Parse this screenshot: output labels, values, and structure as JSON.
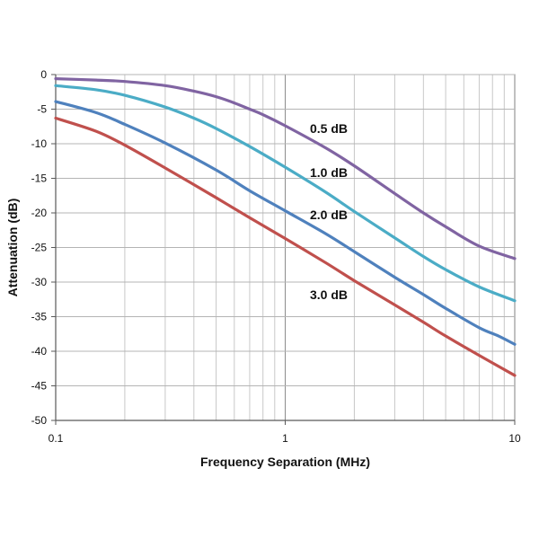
{
  "chart_data": {
    "type": "line",
    "title": "",
    "xlabel": "Frequency Separation (MHz)",
    "ylabel": "Attenuation (dB)",
    "x_scale": "log",
    "xlim": [
      0.1,
      10
    ],
    "ylim": [
      -50,
      0
    ],
    "x_ticks": [
      "0.1",
      "1",
      "10"
    ],
    "y_ticks": [
      "0",
      "-5",
      "-10",
      "-15",
      "-20",
      "-25",
      "-30",
      "-35",
      "-40",
      "-45",
      "-50"
    ],
    "grid": true,
    "legend": "none (series labeled inline)",
    "series": [
      {
        "name": "0.5 dB",
        "color": "#8064a2",
        "points": [
          [
            0.1,
            -0.6
          ],
          [
            0.15,
            -0.8
          ],
          [
            0.2,
            -1.0
          ],
          [
            0.3,
            -1.6
          ],
          [
            0.4,
            -2.4
          ],
          [
            0.5,
            -3.2
          ],
          [
            0.6,
            -4.1
          ],
          [
            0.7,
            -5.0
          ],
          [
            0.8,
            -5.8
          ],
          [
            1.0,
            -7.4
          ],
          [
            1.5,
            -10.6
          ],
          [
            2.0,
            -13.2
          ],
          [
            3.0,
            -17.2
          ],
          [
            4.0,
            -20.0
          ],
          [
            5.0,
            -22.0
          ],
          [
            7.0,
            -24.8
          ],
          [
            10,
            -26.6
          ]
        ]
      },
      {
        "name": "1.0 dB",
        "color": "#4bacc6",
        "points": [
          [
            0.1,
            -1.6
          ],
          [
            0.15,
            -2.2
          ],
          [
            0.2,
            -3.0
          ],
          [
            0.3,
            -4.7
          ],
          [
            0.4,
            -6.3
          ],
          [
            0.5,
            -7.8
          ],
          [
            0.7,
            -10.4
          ],
          [
            1.0,
            -13.4
          ],
          [
            1.5,
            -17.0
          ],
          [
            2.0,
            -19.8
          ],
          [
            3.0,
            -23.6
          ],
          [
            4.0,
            -26.3
          ],
          [
            5.0,
            -28.2
          ],
          [
            7.0,
            -30.7
          ],
          [
            10,
            -32.7
          ]
        ]
      },
      {
        "name": "2.0 dB",
        "color": "#4f81bd",
        "points": [
          [
            0.1,
            -3.9
          ],
          [
            0.15,
            -5.5
          ],
          [
            0.2,
            -7.2
          ],
          [
            0.3,
            -9.9
          ],
          [
            0.5,
            -13.8
          ],
          [
            0.7,
            -16.8
          ],
          [
            1.0,
            -19.7
          ],
          [
            1.5,
            -23.0
          ],
          [
            2.0,
            -25.6
          ],
          [
            3.0,
            -29.3
          ],
          [
            4.0,
            -31.8
          ],
          [
            5.0,
            -33.8
          ],
          [
            7.0,
            -36.6
          ],
          [
            8.5,
            -37.8
          ],
          [
            10,
            -39.0
          ]
        ]
      },
      {
        "name": "3.0 dB",
        "color": "#c0504d",
        "points": [
          [
            0.1,
            -6.3
          ],
          [
            0.15,
            -8.2
          ],
          [
            0.2,
            -10.2
          ],
          [
            0.3,
            -13.5
          ],
          [
            0.5,
            -17.8
          ],
          [
            0.7,
            -20.7
          ],
          [
            1.0,
            -23.7
          ],
          [
            1.5,
            -27.2
          ],
          [
            2.0,
            -29.8
          ],
          [
            3.0,
            -33.3
          ],
          [
            4.0,
            -35.8
          ],
          [
            5.0,
            -37.8
          ],
          [
            7.0,
            -40.6
          ],
          [
            10,
            -43.5
          ]
        ]
      }
    ],
    "annotations": [
      {
        "text": "0.5 dB",
        "series": "0.5 dB"
      },
      {
        "text": "1.0 dB",
        "series": "1.0 dB"
      },
      {
        "text": "2.0 dB",
        "series": "2.0 dB"
      },
      {
        "text": "3.0 dB",
        "series": "3.0 dB"
      }
    ]
  }
}
